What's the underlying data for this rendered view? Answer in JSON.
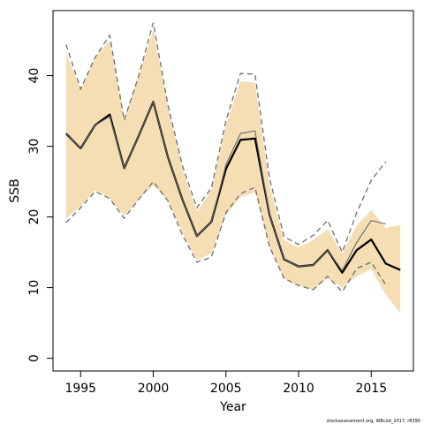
{
  "chart_data": {
    "type": "line",
    "xlabel": "Year",
    "ylabel": "SSB",
    "xlim": [
      1993.1,
      2017.9
    ],
    "ylim": [
      -1.8,
      49.2
    ],
    "x_ticks": [
      1995,
      2000,
      2005,
      2010,
      2015
    ],
    "y_ticks": [
      0,
      10,
      20,
      30,
      40
    ],
    "grid": false,
    "legend": "none",
    "footer_text": "stockassessment.org, WBcod_2017, r8390",
    "colors": {
      "band": "#f5deb3",
      "estimate": "#000000",
      "previous_estimate": "#666666",
      "previous_bounds": "#6e6e6e"
    },
    "series": [
      {
        "role": "confidence-band",
        "x": [
          1994,
          1995,
          1996,
          1997,
          1998,
          1999,
          2000,
          2001,
          2002,
          2003,
          2004,
          2005,
          2006,
          2007,
          2008,
          2009,
          2010,
          2011,
          2012,
          2013,
          2014,
          2015,
          2016,
          2017
        ],
        "lower": [
          19.8,
          21.5,
          23.8,
          22.7,
          20.1,
          22.5,
          24.5,
          22.3,
          17.8,
          13.9,
          14.8,
          20.3,
          22.8,
          23.5,
          15.8,
          11.3,
          10.3,
          9.7,
          11.3,
          10.0,
          11.6,
          12.6,
          9.0,
          6.4
        ],
        "upper": [
          43.3,
          38.0,
          42.6,
          45.0,
          34.0,
          40.0,
          46.5,
          35.7,
          27.0,
          20.7,
          23.8,
          33.0,
          39.2,
          39.0,
          24.6,
          16.7,
          15.7,
          16.7,
          18.3,
          14.8,
          18.8,
          21.0,
          18.4,
          18.9
        ]
      },
      {
        "role": "estimate",
        "x": [
          1994,
          1995,
          1996,
          1997,
          1998,
          1999,
          2000,
          2001,
          2002,
          2003,
          2004,
          2005,
          2006,
          2007,
          2008,
          2009,
          2010,
          2011,
          2012,
          2013,
          2014,
          2015,
          2016,
          2017
        ],
        "values": [
          31.8,
          29.7,
          33.0,
          34.5,
          26.9,
          31.5,
          36.3,
          28.5,
          22.5,
          17.3,
          19.3,
          26.8,
          30.9,
          31.1,
          20.3,
          14.0,
          13.0,
          13.2,
          15.3,
          12.1,
          15.3,
          16.8,
          13.4,
          12.5
        ]
      },
      {
        "role": "previous-estimate",
        "x": [
          1994,
          1995,
          1996,
          1997,
          1998,
          1999,
          2000,
          2001,
          2002,
          2003,
          2004,
          2005,
          2006,
          2007,
          2008,
          2009,
          2010,
          2011,
          2012,
          2013,
          2014,
          2015,
          2016
        ],
        "values": [
          31.8,
          29.7,
          33.0,
          34.2,
          26.9,
          31.5,
          36.3,
          28.5,
          22.5,
          17.3,
          19.3,
          27.4,
          31.8,
          32.2,
          20.3,
          14.0,
          13.0,
          13.2,
          15.3,
          12.4,
          16.4,
          19.5,
          19.0
        ]
      },
      {
        "role": "previous-lower",
        "x": [
          1994,
          1995,
          1996,
          1997,
          1998,
          1999,
          2000,
          2001,
          2002,
          2003,
          2004,
          2005,
          2006,
          2007,
          2008,
          2009,
          2010,
          2011,
          2012,
          2013,
          2014,
          2015,
          2016
        ],
        "values": [
          19.2,
          21.3,
          23.6,
          22.6,
          19.8,
          22.5,
          25.0,
          22.3,
          17.5,
          13.6,
          14.3,
          20.6,
          23.3,
          24.2,
          15.8,
          11.3,
          10.3,
          9.7,
          11.6,
          9.4,
          12.7,
          13.6,
          10.4
        ]
      },
      {
        "role": "previous-upper",
        "x": [
          1994,
          1995,
          1996,
          1997,
          1998,
          1999,
          2000,
          2001,
          2002,
          2003,
          2004,
          2005,
          2006,
          2007,
          2008,
          2009,
          2010,
          2011,
          2012,
          2013,
          2014,
          2015,
          2016
        ],
        "values": [
          44.4,
          38.1,
          42.6,
          45.7,
          33.7,
          40.0,
          47.5,
          35.9,
          27.3,
          21.3,
          24.1,
          33.6,
          40.3,
          40.2,
          25.5,
          17.2,
          16.1,
          17.4,
          19.5,
          15.0,
          20.6,
          25.2,
          27.8
        ]
      }
    ]
  }
}
